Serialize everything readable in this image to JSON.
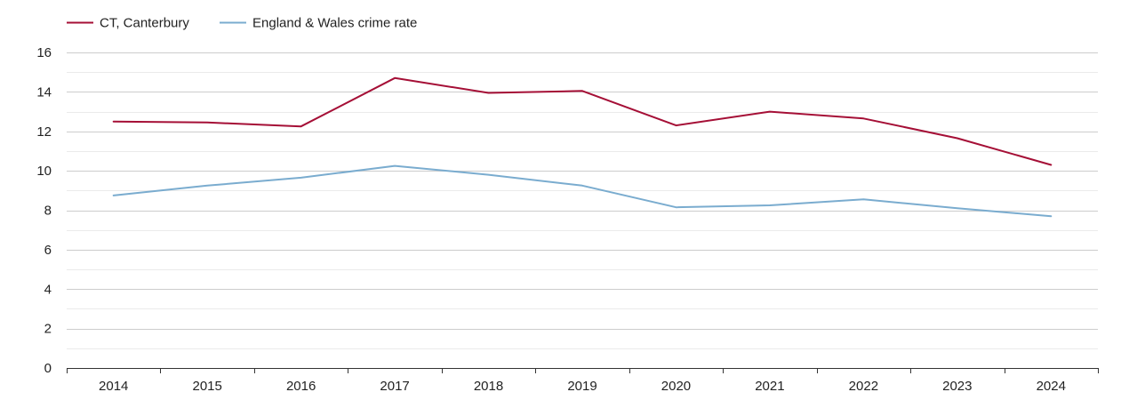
{
  "chart_data": {
    "type": "line",
    "x": [
      "2014",
      "2015",
      "2016",
      "2017",
      "2018",
      "2019",
      "2020",
      "2021",
      "2022",
      "2023",
      "2024"
    ],
    "series": [
      {
        "name": "CT, Canterbury",
        "color": "#a50f36",
        "values": [
          12.5,
          12.45,
          12.25,
          14.7,
          13.95,
          14.05,
          12.3,
          13.0,
          12.65,
          11.65,
          10.3
        ]
      },
      {
        "name": "England & Wales crime rate",
        "color": "#7aaccf",
        "values": [
          8.75,
          9.25,
          9.65,
          10.25,
          9.8,
          9.25,
          8.15,
          8.25,
          8.55,
          8.1,
          7.7
        ]
      }
    ],
    "yticks": [
      "0",
      "2",
      "4",
      "6",
      "8",
      "10",
      "12",
      "14",
      "16"
    ],
    "ylim": [
      0,
      16
    ],
    "grid": true,
    "legend_position": "top-left"
  }
}
